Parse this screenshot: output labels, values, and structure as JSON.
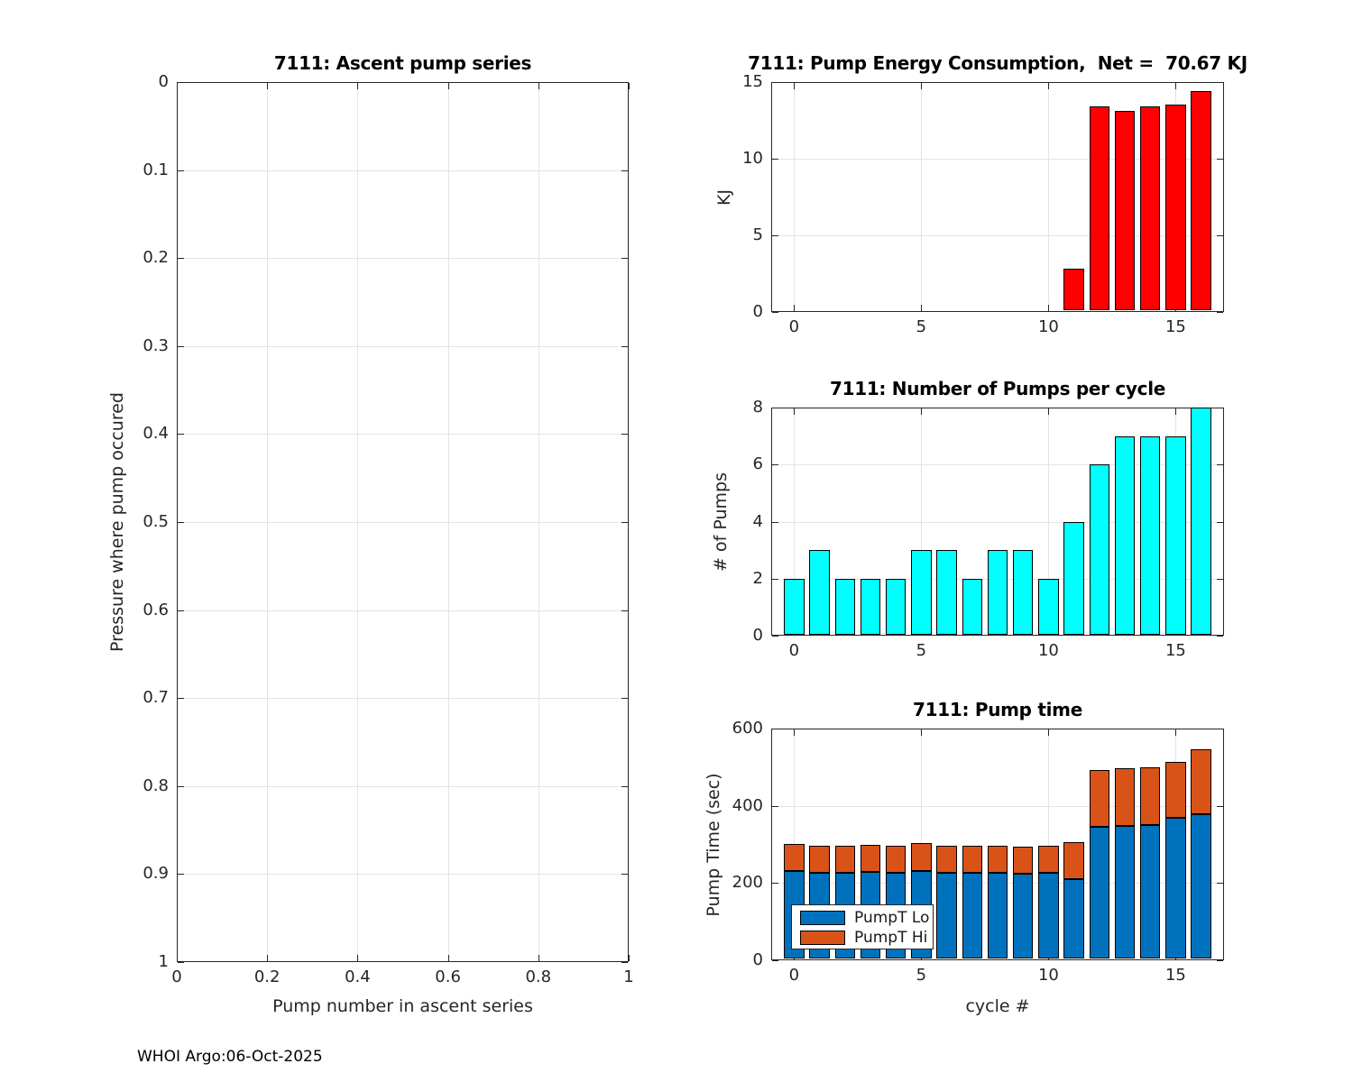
{
  "figure": {
    "footer": "WHOI Argo:06-Oct-2025",
    "background": "#FFFFFF",
    "axis_color": "#262626",
    "grid_color": "#E3E3E3"
  },
  "chart_data": [
    {
      "id": "ascent",
      "type": "scatter",
      "title": "7111: Ascent pump series",
      "xlabel": "Pump number in ascent series",
      "ylabel": "Pressure where pump occured",
      "xlim": [
        0,
        1
      ],
      "ylim": [
        0,
        1
      ],
      "y_reversed": true,
      "xticks": [
        0,
        0.2,
        0.4,
        0.6,
        0.8,
        1
      ],
      "yticks": [
        0,
        0.1,
        0.2,
        0.3,
        0.4,
        0.5,
        0.6,
        0.7,
        0.8,
        0.9,
        1
      ],
      "grid": true,
      "points": []
    },
    {
      "id": "energy",
      "type": "bar",
      "title": "7111: Pump Energy Consumption,  Net =  70.67 KJ",
      "xlabel": "",
      "ylabel": "KJ",
      "net_kj": 70.67,
      "xlim": [
        -0.9,
        16.9
      ],
      "ylim": [
        0,
        15
      ],
      "xticks": [
        0,
        5,
        10,
        15
      ],
      "yticks": [
        0,
        5,
        10,
        15
      ],
      "grid": true,
      "bar_color": "#FF0000",
      "bar_width": 0.8,
      "x": [
        0,
        1,
        2,
        3,
        4,
        5,
        6,
        7,
        8,
        9,
        10,
        11,
        12,
        13,
        14,
        15,
        16
      ],
      "values": [
        0,
        0,
        0,
        0,
        0,
        0,
        0,
        0,
        0,
        0,
        0,
        2.85,
        13.4,
        13.1,
        13.4,
        13.52,
        14.4
      ]
    },
    {
      "id": "pumps",
      "type": "bar",
      "title": "7111: Number of Pumps per cycle",
      "xlabel": "",
      "ylabel": "# of Pumps",
      "xlim": [
        -0.9,
        16.9
      ],
      "ylim": [
        0,
        8
      ],
      "xticks": [
        0,
        5,
        10,
        15
      ],
      "yticks": [
        0,
        2,
        4,
        6,
        8
      ],
      "grid": true,
      "bar_color": "#00FFFF",
      "bar_width": 0.8,
      "x": [
        0,
        1,
        2,
        3,
        4,
        5,
        6,
        7,
        8,
        9,
        10,
        11,
        12,
        13,
        14,
        15,
        16
      ],
      "values": [
        2,
        3,
        2,
        2,
        2,
        3,
        3,
        2,
        3,
        3,
        2,
        4,
        6,
        7,
        7,
        7,
        8
      ]
    },
    {
      "id": "pumptime",
      "type": "stacked-bar",
      "title": "7111: Pump time",
      "xlabel": "cycle #",
      "ylabel": "Pump Time (sec)",
      "xlim": [
        -0.9,
        16.9
      ],
      "ylim": [
        0,
        600
      ],
      "xticks": [
        0,
        5,
        10,
        15
      ],
      "yticks": [
        0,
        200,
        400,
        600
      ],
      "grid": true,
      "bar_width": 0.8,
      "x": [
        0,
        1,
        2,
        3,
        4,
        5,
        6,
        7,
        8,
        9,
        10,
        11,
        12,
        13,
        14,
        15,
        16
      ],
      "series": [
        {
          "name": "PumpT Lo",
          "color": "#0072BD",
          "values": [
            230,
            226,
            226,
            229,
            226,
            231,
            227,
            227,
            227,
            224,
            227,
            210,
            346,
            349,
            351,
            368,
            379
          ]
        },
        {
          "name": "PumpT Hi",
          "color": "#D95319",
          "values": [
            72,
            70,
            70,
            71,
            71,
            72,
            69,
            69,
            69,
            70,
            69,
            97,
            146,
            148,
            149,
            145,
            168
          ]
        }
      ],
      "legend": {
        "position": "southwest",
        "entries": [
          "PumpT Lo",
          "PumpT Hi"
        ]
      }
    }
  ]
}
